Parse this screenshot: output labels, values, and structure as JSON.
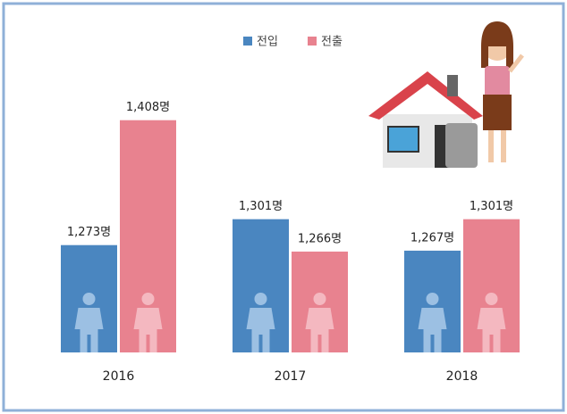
{
  "chart_data": {
    "type": "bar",
    "categories": [
      "2016",
      "2017",
      "2018"
    ],
    "series": [
      {
        "name": "전입",
        "color": "#4a86c0",
        "values": [
          1273,
          1301,
          1267
        ],
        "value_labels": [
          "1,273명",
          "1,301명",
          "1,267명"
        ]
      },
      {
        "name": "전출",
        "color": "#e8828f",
        "values": [
          1408,
          1266,
          1301
        ],
        "value_labels": [
          "1,408명",
          "1,266명",
          "1,301명"
        ]
      }
    ],
    "ylim": [
      1157,
      1427
    ],
    "legend": "top"
  }
}
